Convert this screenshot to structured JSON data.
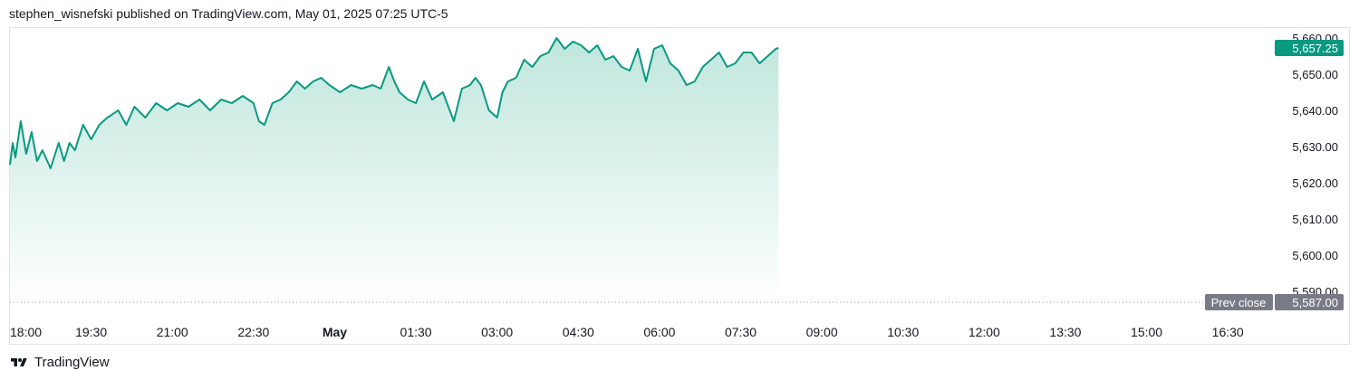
{
  "header": {
    "text": "stephen_wisnefski published on TradingView.com, May 01, 2025 07:25 UTC-5"
  },
  "footer": {
    "brand": "TradingView"
  },
  "colors": {
    "line": "#089981",
    "fill_top": "#bfe6dc",
    "fill_bottom": "#ffffff",
    "badge_current": "#089981",
    "badge_prev": "#787b86"
  },
  "chart_data": {
    "type": "area",
    "y_ticks": [
      "5,590.00",
      "5,600.00",
      "5,610.00",
      "5,620.00",
      "5,630.00",
      "5,640.00",
      "5,650.00",
      "5,660.00"
    ],
    "y_tick_values": [
      5590,
      5600,
      5610,
      5620,
      5630,
      5640,
      5650,
      5660
    ],
    "ylim": [
      5587,
      5660.5
    ],
    "x_ticks": [
      "18:00",
      "19:30",
      "21:00",
      "22:30",
      "May",
      "01:30",
      "03:00",
      "04:30",
      "06:00",
      "07:30",
      "09:00",
      "10:30",
      "12:00",
      "13:30",
      "15:00",
      "16:30"
    ],
    "x_tick_hours": [
      0,
      1.5,
      3,
      4.5,
      6,
      7.5,
      9,
      10.5,
      12,
      13.5,
      15,
      16.5,
      18,
      19.5,
      21,
      22.5
    ],
    "xlim_hours": [
      0,
      23.2
    ],
    "x_unit": "hours since 18:00 Apr 30",
    "series": [
      {
        "x": [
          0,
          0.05,
          0.1,
          0.2,
          0.3,
          0.4,
          0.5,
          0.6,
          0.75,
          0.9,
          1.0,
          1.1,
          1.2,
          1.35,
          1.5,
          1.65,
          1.8,
          2.0,
          2.15,
          2.3,
          2.5,
          2.7,
          2.9,
          3.1,
          3.3,
          3.5,
          3.7,
          3.9,
          4.1,
          4.3,
          4.5,
          4.6,
          4.7,
          4.85,
          5.0,
          5.15,
          5.3,
          5.45,
          5.6,
          5.75,
          5.9,
          6.1,
          6.3,
          6.5,
          6.7,
          6.85,
          7.0,
          7.1,
          7.2,
          7.35,
          7.5,
          7.65,
          7.8,
          8.0,
          8.2,
          8.35,
          8.5,
          8.6,
          8.7,
          8.85,
          9.0,
          9.1,
          9.2,
          9.35,
          9.5,
          9.65,
          9.8,
          9.95,
          10.1,
          10.25,
          10.4,
          10.55,
          10.7,
          10.85,
          11.0,
          11.15,
          11.3,
          11.45,
          11.6,
          11.75,
          11.9,
          12.05,
          12.2,
          12.35,
          12.5,
          12.65,
          12.8,
          12.95,
          13.1,
          13.25,
          13.4,
          13.55,
          13.7,
          13.85,
          14.0,
          14.15,
          14.2
        ],
        "values": [
          5625,
          5631,
          5627,
          5637,
          5628,
          5634,
          5626,
          5629,
          5624,
          5631,
          5626,
          5631,
          5629,
          5636,
          5632,
          5636,
          5638,
          5640,
          5636,
          5641,
          5638,
          5642,
          5640,
          5642,
          5641,
          5643,
          5640,
          5643,
          5642,
          5644,
          5642,
          5637,
          5636,
          5642,
          5643,
          5645,
          5648,
          5646,
          5648,
          5649,
          5647,
          5645,
          5647,
          5646,
          5647,
          5646,
          5652,
          5648,
          5645,
          5643,
          5642,
          5648,
          5643,
          5645,
          5637,
          5646,
          5647,
          5649,
          5647,
          5640,
          5638,
          5645,
          5648,
          5649,
          5654,
          5652,
          5655,
          5656,
          5660,
          5657,
          5659,
          5658,
          5656,
          5658,
          5654,
          5655,
          5652,
          5651,
          5657,
          5648,
          5657,
          5658,
          5653,
          5651,
          5647,
          5648,
          5652,
          5654,
          5656,
          5652,
          5653,
          5656,
          5656,
          5653,
          5655,
          5657,
          5657.25
        ]
      }
    ],
    "current_value": 5657.25,
    "current_label": "5,657.25",
    "prev_close_value": 5587,
    "prev_close_label": "Prev close",
    "prev_close_text": "5,587.00",
    "grid": false
  }
}
